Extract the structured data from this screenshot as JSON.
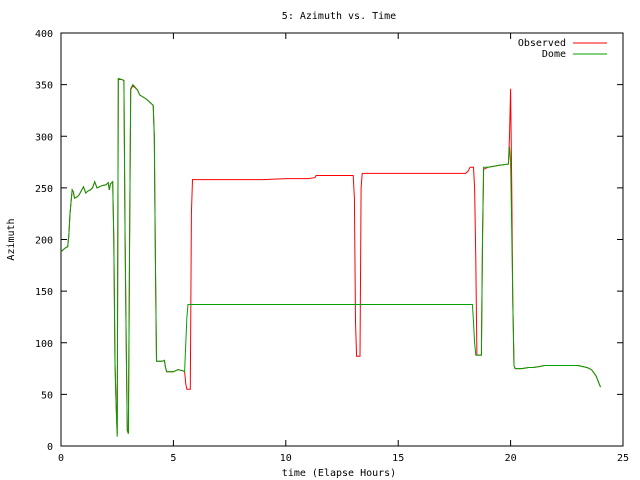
{
  "chart_data": {
    "type": "line",
    "title": "5: Azimuth vs. Time",
    "xlabel": "time (Elapse Hours)",
    "ylabel": "Azimuth",
    "xlim": [
      0,
      25
    ],
    "ylim": [
      0,
      400
    ],
    "xticks": [
      "0",
      "5",
      "10",
      "15",
      "20",
      "25"
    ],
    "yticks": [
      "0",
      "50",
      "100",
      "150",
      "200",
      "250",
      "300",
      "350",
      "400"
    ],
    "grid": false,
    "legend_position": "top-right",
    "series": [
      {
        "name": "Observed",
        "color": "#ff0000",
        "points": [
          [
            0,
            188
          ],
          [
            0.1,
            190
          ],
          [
            0.2,
            192
          ],
          [
            0.3,
            193
          ],
          [
            0.35,
            205
          ],
          [
            0.4,
            225
          ],
          [
            0.45,
            237
          ],
          [
            0.5,
            248
          ],
          [
            0.55,
            246
          ],
          [
            0.6,
            240
          ],
          [
            0.7,
            241
          ],
          [
            0.8,
            243
          ],
          [
            0.9,
            247
          ],
          [
            1.0,
            251
          ],
          [
            1.1,
            245
          ],
          [
            1.2,
            247
          ],
          [
            1.3,
            248
          ],
          [
            1.4,
            250
          ],
          [
            1.5,
            256
          ],
          [
            1.6,
            250
          ],
          [
            1.8,
            252
          ],
          [
            2.0,
            253
          ],
          [
            2.1,
            255
          ],
          [
            2.15,
            248
          ],
          [
            2.2,
            254
          ],
          [
            2.3,
            256
          ],
          [
            2.35,
            200
          ],
          [
            2.4,
            80
          ],
          [
            2.45,
            40
          ],
          [
            2.5,
            12
          ],
          [
            2.55,
            355
          ],
          [
            2.7,
            355
          ],
          [
            2.8,
            354
          ],
          [
            2.85,
            200
          ],
          [
            2.9,
            100
          ],
          [
            2.95,
            15
          ],
          [
            3.0,
            12
          ],
          [
            3.05,
            200
          ],
          [
            3.1,
            345
          ],
          [
            3.2,
            349
          ],
          [
            3.4,
            345
          ],
          [
            3.5,
            340
          ],
          [
            3.8,
            336
          ],
          [
            4.0,
            332
          ],
          [
            4.1,
            330
          ],
          [
            4.15,
            300
          ],
          [
            4.2,
            180
          ],
          [
            4.25,
            82
          ],
          [
            4.5,
            82
          ],
          [
            4.6,
            83
          ],
          [
            4.65,
            76
          ],
          [
            4.7,
            72
          ],
          [
            5.0,
            72
          ],
          [
            5.2,
            74
          ],
          [
            5.4,
            73
          ],
          [
            5.5,
            72
          ],
          [
            5.55,
            60
          ],
          [
            5.6,
            55
          ],
          [
            5.75,
            55
          ],
          [
            5.8,
            225
          ],
          [
            5.85,
            258
          ],
          [
            7.0,
            258
          ],
          [
            8.0,
            258
          ],
          [
            9.0,
            258
          ],
          [
            10.0,
            259
          ],
          [
            11.0,
            259
          ],
          [
            11.3,
            260
          ],
          [
            11.35,
            262
          ],
          [
            13.0,
            262
          ],
          [
            13.05,
            240
          ],
          [
            13.1,
            120
          ],
          [
            13.15,
            87
          ],
          [
            13.3,
            87
          ],
          [
            13.35,
            250
          ],
          [
            13.4,
            264
          ],
          [
            15.0,
            264
          ],
          [
            16.0,
            264
          ],
          [
            17.0,
            264
          ],
          [
            18.0,
            264
          ],
          [
            18.1,
            266
          ],
          [
            18.2,
            270
          ],
          [
            18.35,
            270
          ],
          [
            18.4,
            250
          ],
          [
            18.45,
            180
          ],
          [
            18.5,
            88
          ],
          [
            18.7,
            88
          ],
          [
            18.75,
            200
          ],
          [
            18.8,
            268
          ],
          [
            19.0,
            270
          ],
          [
            19.5,
            272
          ],
          [
            19.9,
            273
          ],
          [
            19.95,
            300
          ],
          [
            20.0,
            346
          ],
          [
            20.05,
            255
          ],
          [
            20.1,
            140
          ],
          [
            20.15,
            78
          ],
          [
            20.2,
            75
          ],
          [
            20.5,
            75
          ],
          [
            20.8,
            76
          ],
          [
            21.0,
            76
          ],
          [
            21.3,
            77
          ],
          [
            21.5,
            78
          ],
          [
            22.0,
            78
          ],
          [
            22.5,
            78
          ],
          [
            23.0,
            78
          ],
          [
            23.2,
            77
          ],
          [
            23.4,
            76
          ],
          [
            23.6,
            74
          ],
          [
            23.8,
            68
          ],
          [
            24.0,
            57
          ]
        ]
      },
      {
        "name": "Dome",
        "color": "#00a000",
        "points": [
          [
            0,
            188
          ],
          [
            0.1,
            190
          ],
          [
            0.2,
            192
          ],
          [
            0.3,
            193
          ],
          [
            0.35,
            205
          ],
          [
            0.4,
            225
          ],
          [
            0.45,
            237
          ],
          [
            0.5,
            248
          ],
          [
            0.55,
            246
          ],
          [
            0.6,
            240
          ],
          [
            0.7,
            241
          ],
          [
            0.8,
            243
          ],
          [
            0.9,
            247
          ],
          [
            1.0,
            251
          ],
          [
            1.1,
            245
          ],
          [
            1.2,
            247
          ],
          [
            1.3,
            248
          ],
          [
            1.4,
            250
          ],
          [
            1.5,
            256
          ],
          [
            1.6,
            250
          ],
          [
            1.8,
            252
          ],
          [
            2.0,
            253
          ],
          [
            2.1,
            255
          ],
          [
            2.15,
            248
          ],
          [
            2.2,
            254
          ],
          [
            2.3,
            256
          ],
          [
            2.35,
            200
          ],
          [
            2.4,
            80
          ],
          [
            2.45,
            40
          ],
          [
            2.5,
            9
          ],
          [
            2.55,
            356
          ],
          [
            2.7,
            355
          ],
          [
            2.8,
            354
          ],
          [
            2.85,
            200
          ],
          [
            2.9,
            100
          ],
          [
            2.95,
            15
          ],
          [
            3.0,
            12
          ],
          [
            3.05,
            200
          ],
          [
            3.1,
            346
          ],
          [
            3.2,
            350
          ],
          [
            3.4,
            345
          ],
          [
            3.5,
            340
          ],
          [
            3.8,
            336
          ],
          [
            4.0,
            332
          ],
          [
            4.1,
            330
          ],
          [
            4.15,
            300
          ],
          [
            4.2,
            180
          ],
          [
            4.25,
            82
          ],
          [
            4.5,
            82
          ],
          [
            4.6,
            83
          ],
          [
            4.65,
            76
          ],
          [
            4.7,
            72
          ],
          [
            5.0,
            72
          ],
          [
            5.2,
            74
          ],
          [
            5.4,
            73
          ],
          [
            5.5,
            72
          ],
          [
            5.55,
            100
          ],
          [
            5.6,
            125
          ],
          [
            5.65,
            137
          ],
          [
            6.0,
            137
          ],
          [
            8.0,
            137
          ],
          [
            10.0,
            137
          ],
          [
            12.0,
            137
          ],
          [
            14.0,
            137
          ],
          [
            16.0,
            137
          ],
          [
            18.0,
            137
          ],
          [
            18.3,
            137
          ],
          [
            18.35,
            120
          ],
          [
            18.4,
            100
          ],
          [
            18.45,
            88
          ],
          [
            18.7,
            88
          ],
          [
            18.75,
            200
          ],
          [
            18.8,
            270
          ],
          [
            19.0,
            270
          ],
          [
            19.5,
            272
          ],
          [
            19.9,
            273
          ],
          [
            19.95,
            290
          ],
          [
            20.0,
            276
          ],
          [
            20.05,
            210
          ],
          [
            20.1,
            140
          ],
          [
            20.15,
            78
          ],
          [
            20.2,
            75
          ],
          [
            20.5,
            75
          ],
          [
            20.8,
            76
          ],
          [
            21.0,
            76
          ],
          [
            21.3,
            77
          ],
          [
            21.5,
            78
          ],
          [
            22.0,
            78
          ],
          [
            22.5,
            78
          ],
          [
            23.0,
            78
          ],
          [
            23.2,
            77
          ],
          [
            23.4,
            76
          ],
          [
            23.6,
            74
          ],
          [
            23.8,
            68
          ],
          [
            24.0,
            57
          ]
        ]
      }
    ]
  }
}
